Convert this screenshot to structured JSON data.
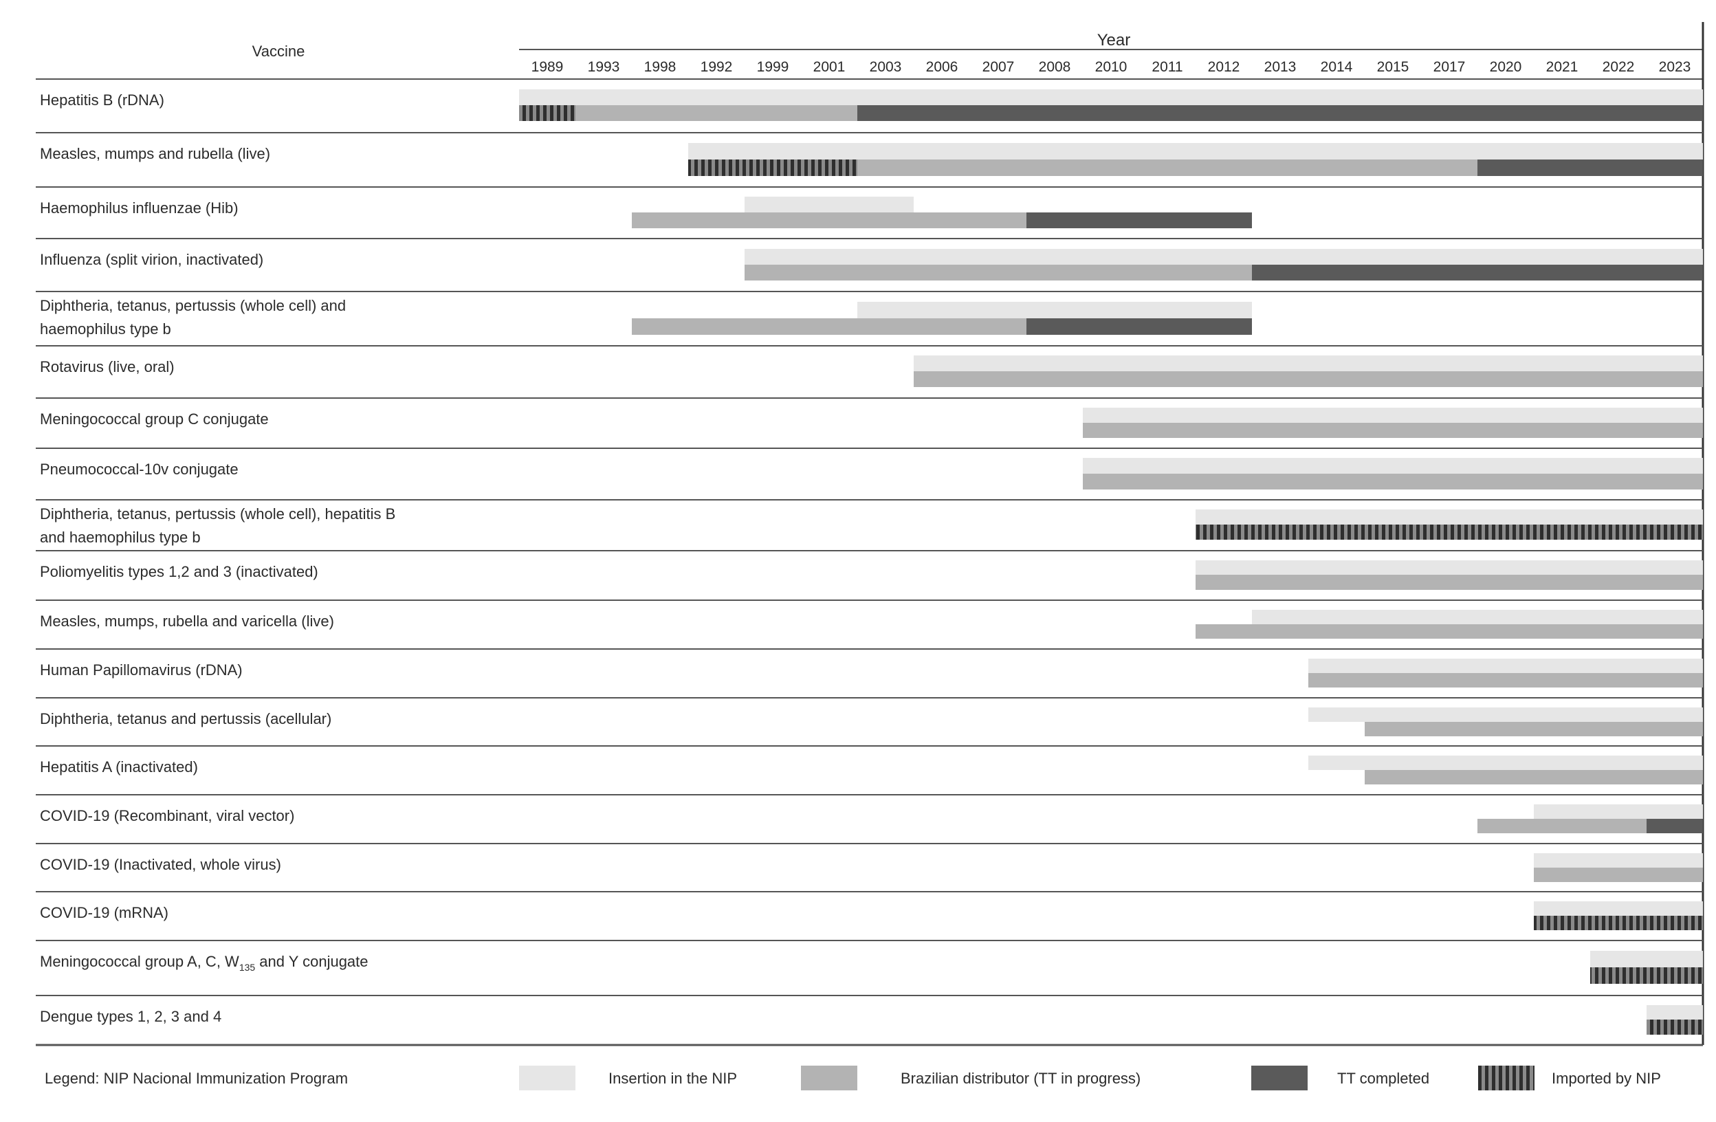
{
  "chart_data": {
    "type": "gantt",
    "header": {
      "vaccine": "Vaccine",
      "year": "Year"
    },
    "years": [
      "1989",
      "1993",
      "1998",
      "1992",
      "1999",
      "2001",
      "2003",
      "2006",
      "2007",
      "2008",
      "2010",
      "2011",
      "2012",
      "2013",
      "2014",
      "2015",
      "2017",
      "2020",
      "2021",
      "2022",
      "2023"
    ],
    "status_colors": {
      "insertion": "#e6e6e6",
      "distributor": "#b3b3b3",
      "tt_completed": "#5a5a5a",
      "imported": "#5e5e5e"
    },
    "rows": [
      {
        "label": "Hepatitis B (rDNA)",
        "top": [
          {
            "start": 0,
            "end": 21,
            "status": "insertion"
          }
        ],
        "bottom": [
          {
            "start": 0,
            "end": 1,
            "status": "imported"
          },
          {
            "start": 1,
            "end": 6,
            "status": "distributor"
          },
          {
            "start": 6,
            "end": 21,
            "status": "tt_completed"
          }
        ]
      },
      {
        "label": "Measles, mumps and rubella (live)",
        "top": [
          {
            "start": 3,
            "end": 21,
            "status": "insertion"
          }
        ],
        "bottom": [
          {
            "start": 3,
            "end": 6,
            "status": "imported"
          },
          {
            "start": 6,
            "end": 17,
            "status": "distributor"
          },
          {
            "start": 17,
            "end": 21,
            "status": "tt_completed"
          }
        ]
      },
      {
        "label": "Haemophilus influenzae (Hib)",
        "top": [
          {
            "start": 4,
            "end": 7,
            "status": "insertion"
          }
        ],
        "bottom": [
          {
            "start": 2,
            "end": 9,
            "status": "distributor"
          },
          {
            "start": 9,
            "end": 13,
            "status": "tt_completed"
          }
        ]
      },
      {
        "label": "Influenza (split virion, inactivated)",
        "top": [
          {
            "start": 4,
            "end": 21,
            "status": "insertion"
          }
        ],
        "bottom": [
          {
            "start": 4,
            "end": 13,
            "status": "distributor"
          },
          {
            "start": 13,
            "end": 21,
            "status": "tt_completed"
          }
        ]
      },
      {
        "label": "Diphtheria, tetanus, pertussis (whole cell) and haemophilus type b",
        "lines": [
          "Diphtheria, tetanus, pertussis (whole cell) and",
          "haemophilus type b"
        ],
        "top": [
          {
            "start": 6,
            "end": 13,
            "status": "insertion"
          }
        ],
        "bottom": [
          {
            "start": 2,
            "end": 9,
            "status": "distributor"
          },
          {
            "start": 9,
            "end": 13,
            "status": "tt_completed"
          }
        ]
      },
      {
        "label": "Rotavirus (live, oral)",
        "top": [
          {
            "start": 7,
            "end": 21,
            "status": "insertion"
          }
        ],
        "bottom": [
          {
            "start": 7,
            "end": 21,
            "status": "distributor"
          }
        ]
      },
      {
        "label": "Meningococcal group C conjugate",
        "top": [
          {
            "start": 10,
            "end": 21,
            "status": "insertion"
          }
        ],
        "bottom": [
          {
            "start": 10,
            "end": 21,
            "status": "distributor"
          }
        ]
      },
      {
        "label": "Pneumococcal-10v conjugate",
        "top": [
          {
            "start": 10,
            "end": 21,
            "status": "insertion"
          }
        ],
        "bottom": [
          {
            "start": 10,
            "end": 21,
            "status": "distributor"
          }
        ]
      },
      {
        "label": "Diphtheria, tetanus, pertussis (whole cell), hepatitis B and haemophilus type b",
        "lines": [
          "Diphtheria, tetanus, pertussis (whole cell), hepatitis B",
          "and haemophilus type b"
        ],
        "top": [
          {
            "start": 12,
            "end": 21,
            "status": "insertion"
          }
        ],
        "bottom": [
          {
            "start": 12,
            "end": 21,
            "status": "imported"
          }
        ]
      },
      {
        "label": "Poliomyelitis types 1,2 and 3 (inactivated)",
        "top": [
          {
            "start": 12,
            "end": 21,
            "status": "insertion"
          }
        ],
        "bottom": [
          {
            "start": 12,
            "end": 21,
            "status": "distributor"
          }
        ]
      },
      {
        "label": "Measles, mumps, rubella and varicella (live)",
        "top": [
          {
            "start": 13,
            "end": 21,
            "status": "insertion"
          }
        ],
        "bottom": [
          {
            "start": 12,
            "end": 21,
            "status": "distributor"
          }
        ]
      },
      {
        "label": "Human Papillomavirus (rDNA)",
        "top": [
          {
            "start": 14,
            "end": 21,
            "status": "insertion"
          }
        ],
        "bottom": [
          {
            "start": 14,
            "end": 21,
            "status": "distributor"
          }
        ]
      },
      {
        "label": "Diphtheria, tetanus and pertussis (acellular)",
        "top": [
          {
            "start": 14,
            "end": 21,
            "status": "insertion"
          }
        ],
        "bottom": [
          {
            "start": 15,
            "end": 21,
            "status": "distributor"
          }
        ]
      },
      {
        "label": "Hepatitis A (inactivated)",
        "top": [
          {
            "start": 14,
            "end": 21,
            "status": "insertion"
          }
        ],
        "bottom": [
          {
            "start": 15,
            "end": 21,
            "status": "distributor"
          }
        ]
      },
      {
        "label": "COVID-19 (Recombinant, viral vector)",
        "top": [
          {
            "start": 18,
            "end": 21,
            "status": "insertion"
          }
        ],
        "bottom": [
          {
            "start": 17,
            "end": 20,
            "status": "distributor"
          },
          {
            "start": 20,
            "end": 21,
            "status": "tt_completed"
          }
        ]
      },
      {
        "label": "COVID-19 (Inactivated, whole virus)",
        "top": [
          {
            "start": 18,
            "end": 21,
            "status": "insertion"
          }
        ],
        "bottom": [
          {
            "start": 18,
            "end": 21,
            "status": "distributor"
          }
        ]
      },
      {
        "label": "COVID-19 (mRNA)",
        "top": [
          {
            "start": 18,
            "end": 21,
            "status": "insertion"
          }
        ],
        "bottom": [
          {
            "start": 18,
            "end": 21,
            "status": "imported"
          }
        ]
      },
      {
        "label": "Meningococcal group A, C, W135 and Y conjugate",
        "lines": [
          "Meningococcal group A, C, W",
          "135",
          " and Y conjugate"
        ],
        "top": [
          {
            "start": 19,
            "end": 21,
            "status": "insertion"
          }
        ],
        "bottom": [
          {
            "start": 19,
            "end": 21,
            "status": "imported"
          }
        ]
      },
      {
        "label": "Dengue types 1, 2, 3 and 4",
        "top": [
          {
            "start": 20,
            "end": 21,
            "status": "insertion"
          }
        ],
        "bottom": [
          {
            "start": 20,
            "end": 21,
            "status": "imported"
          }
        ]
      }
    ],
    "legend": {
      "intro": "Legend: NIP Nacional Immunization Program",
      "items": [
        {
          "status": "insertion",
          "label": "Insertion in the NIP"
        },
        {
          "status": "distributor",
          "label": "Brazilian distributor (TT in progress)"
        },
        {
          "status": "tt_completed",
          "label": "TT completed"
        },
        {
          "status": "imported",
          "label": "Imported by NIP"
        }
      ]
    }
  }
}
